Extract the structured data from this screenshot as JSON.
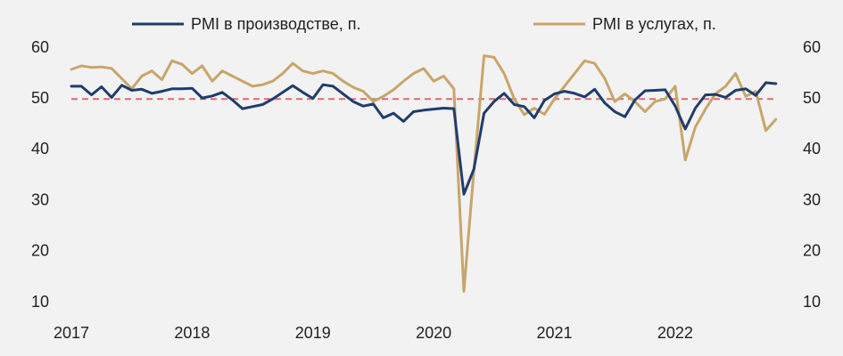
{
  "chart_data": {
    "type": "line",
    "x": [
      2017,
      2017.083,
      2017.167,
      2017.25,
      2017.333,
      2017.417,
      2017.5,
      2017.583,
      2017.667,
      2017.75,
      2017.833,
      2017.917,
      2018,
      2018.083,
      2018.167,
      2018.25,
      2018.333,
      2018.417,
      2018.5,
      2018.583,
      2018.667,
      2018.75,
      2018.833,
      2018.917,
      2019,
      2019.083,
      2019.167,
      2019.25,
      2019.333,
      2019.417,
      2019.5,
      2019.583,
      2019.667,
      2019.75,
      2019.833,
      2019.917,
      2020,
      2020.083,
      2020.167,
      2020.25,
      2020.333,
      2020.417,
      2020.5,
      2020.583,
      2020.667,
      2020.75,
      2020.833,
      2020.917,
      2021,
      2021.083,
      2021.167,
      2021.25,
      2021.333,
      2021.417,
      2021.5,
      2021.583,
      2021.667,
      2021.75,
      2021.833,
      2021.917,
      2022,
      2022.083,
      2022.167,
      2022.25,
      2022.333,
      2022.417,
      2022.5,
      2022.583,
      2022.667,
      2022.75,
      2022.833
    ],
    "series": [
      {
        "name": "PMI в производстве, п.",
        "color": "#1f3d6b",
        "values": [
          52.5,
          52.5,
          50.8,
          52.4,
          50.3,
          52.7,
          51.7,
          51.9,
          51.1,
          51.5,
          52.0,
          52.0,
          52.1,
          50.2,
          50.6,
          51.3,
          49.8,
          48.1,
          48.5,
          48.9,
          50.0,
          51.3,
          52.6,
          51.3,
          50.1,
          52.8,
          52.5,
          51.0,
          49.5,
          48.6,
          49.0,
          46.3,
          47.2,
          45.6,
          47.5,
          47.8,
          48.0,
          48.2,
          48.1,
          31.3,
          36.2,
          47.2,
          49.5,
          51.1,
          48.9,
          48.5,
          46.3,
          49.7,
          51.0,
          51.5,
          51.1,
          50.4,
          51.9,
          49.2,
          47.5,
          46.5,
          49.8,
          51.6,
          51.7,
          51.8,
          48.6,
          44.1,
          48.2,
          50.8,
          50.9,
          50.3,
          51.7,
          52.0,
          50.7,
          53.2,
          53.0
        ]
      },
      {
        "name": "PMI в услугах, п.",
        "color": "#c8a56a",
        "values": [
          55.8,
          56.5,
          56.2,
          56.3,
          56.0,
          54.0,
          52.0,
          54.5,
          55.5,
          53.8,
          57.5,
          56.8,
          55.0,
          56.5,
          53.5,
          55.5,
          54.5,
          53.5,
          52.5,
          52.8,
          53.5,
          55.0,
          57.0,
          55.5,
          55.0,
          55.5,
          55.0,
          53.5,
          52.3,
          51.5,
          49.5,
          50.5,
          51.8,
          53.5,
          55.0,
          56.0,
          53.5,
          54.5,
          52.0,
          12.2,
          35.9,
          58.5,
          58.2,
          55.0,
          50.0,
          46.9,
          48.2,
          47.0,
          50.0,
          52.5,
          55.0,
          57.5,
          57.0,
          54.0,
          49.5,
          51.0,
          49.5,
          47.5,
          49.5,
          50.0,
          52.5,
          38.0,
          44.5,
          48.0,
          51.0,
          52.5,
          55.0,
          50.5,
          51.5,
          43.8,
          46.0
        ]
      }
    ],
    "xlim": [
      2017,
      2022.85
    ],
    "xticks": [
      2017,
      2018,
      2019,
      2020,
      2021,
      2022
    ],
    "ylim": [
      10,
      60
    ],
    "yticks": [
      10,
      20,
      30,
      40,
      50,
      60
    ],
    "y2lim": [
      10,
      60
    ],
    "y2ticks": [
      10,
      20,
      30,
      40,
      50,
      60
    ],
    "reference_line": {
      "value": 50,
      "color": "#e06b6b"
    },
    "legend": "top",
    "grid": false
  }
}
